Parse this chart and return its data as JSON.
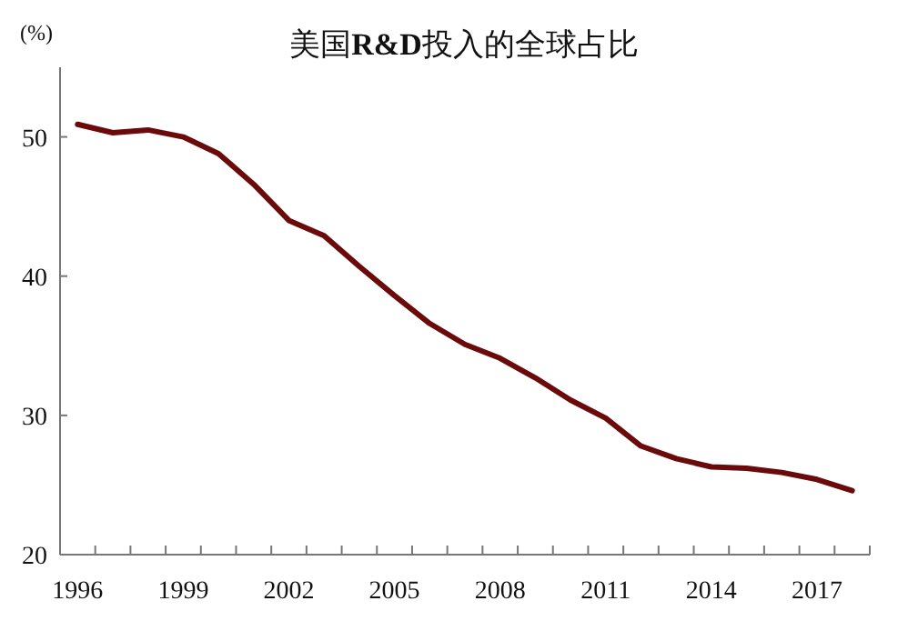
{
  "chart_data": {
    "type": "line",
    "title": "美国**R&D**投入的全球占比",
    "ylabel": "(%)",
    "categories": [
      "1996",
      null,
      null,
      "1999",
      null,
      null,
      "2002",
      null,
      null,
      "2005",
      null,
      null,
      "2008",
      null,
      null,
      "2011",
      null,
      null,
      "2014",
      null,
      null,
      "2017",
      null
    ],
    "series": [
      {
        "color": "#6b0a0a",
        "values": [
          50.9,
          50.3,
          50.5,
          50.0,
          48.8,
          46.6,
          44.0,
          42.9,
          40.7,
          38.6,
          36.6,
          35.1,
          34.1,
          32.7,
          31.1,
          29.8,
          27.8,
          26.9,
          26.3,
          26.2,
          25.9,
          25.4,
          24.6
        ]
      }
    ],
    "ylim": [
      20,
      55
    ],
    "yticks": [
      20,
      30,
      40,
      50
    ],
    "grid": false,
    "marker": "none",
    "line_style": "solid"
  }
}
